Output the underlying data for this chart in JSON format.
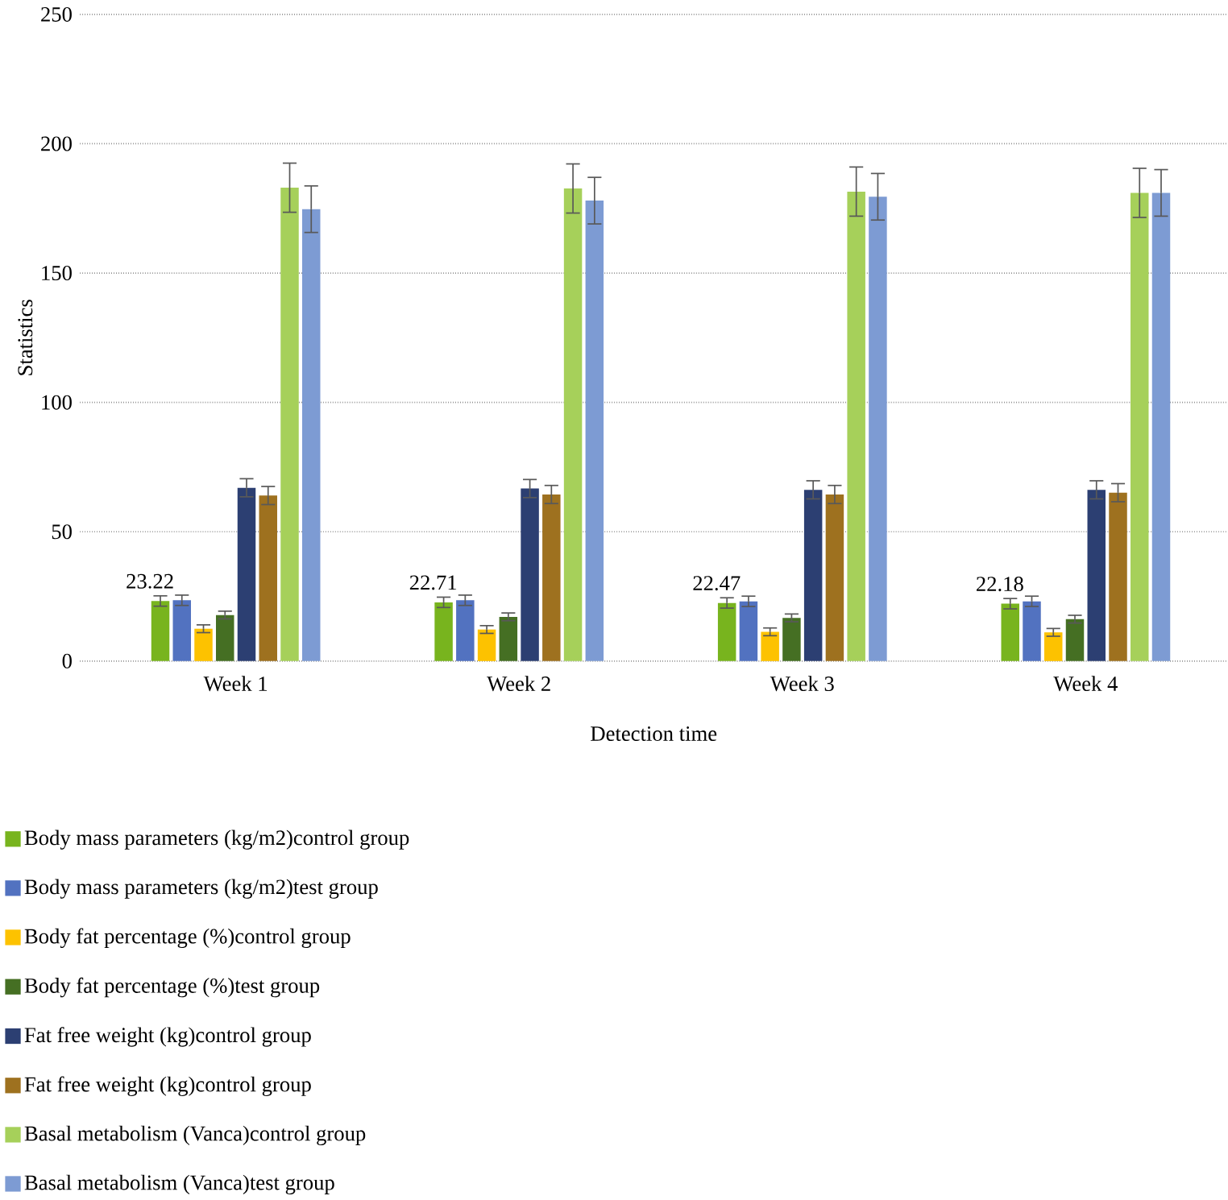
{
  "chart_data": {
    "type": "bar",
    "xlabel": "Detection time",
    "ylabel": "Statistics",
    "categories": [
      "Week 1",
      "Week 2",
      "Week 3",
      "Week 4"
    ],
    "ylim": [
      0,
      250
    ],
    "yticks": [
      0,
      50,
      100,
      150,
      200,
      250
    ],
    "grid": "y",
    "legend": "bottom",
    "series": [
      {
        "name": "Body mass parameters (kg/m2)control group",
        "color": "#78b41e",
        "values": [
          23.22,
          22.71,
          22.47,
          22.18
        ],
        "errors": [
          2,
          2,
          2,
          2
        ],
        "value_labels": [
          "23.22",
          "22.71",
          "22.47",
          "22.18"
        ]
      },
      {
        "name": "Body mass parameters (kg/m2)test group",
        "color": "#5272c0",
        "values": [
          23.5,
          23.5,
          23.1,
          23.1
        ],
        "errors": [
          2,
          2,
          2,
          2
        ]
      },
      {
        "name": "Body fat percentage (%)control group",
        "color": "#fdc200",
        "values": [
          12.5,
          12.2,
          11.3,
          11.1
        ],
        "errors": [
          1.5,
          1.5,
          1.5,
          1.5
        ]
      },
      {
        "name": "Body fat percentage (%)test group",
        "color": "#456f23",
        "values": [
          17.8,
          17.1,
          16.7,
          16.2
        ],
        "errors": [
          1.5,
          1.5,
          1.5,
          1.5
        ]
      },
      {
        "name": "Fat free weight (kg)control group",
        "color": "#2c3f72",
        "values": [
          67,
          66.7,
          66.2,
          66.2
        ],
        "errors": [
          3.5,
          3.5,
          3.5,
          3.5
        ]
      },
      {
        "name": "Fat free weight (kg)control group",
        "color": "#9e711f",
        "values": [
          64,
          64.4,
          64.4,
          65.1
        ],
        "errors": [
          3.5,
          3.5,
          3.5,
          3.5
        ]
      },
      {
        "name": "Basal metabolism (Vanca)control group",
        "color": "#a6d05a",
        "values": [
          183,
          182.7,
          181.5,
          181
        ],
        "errors": [
          9.5,
          9.5,
          9.5,
          9.5
        ]
      },
      {
        "name": "Basal metabolism (Vanca)test group",
        "color": "#7d9bd3",
        "values": [
          174.7,
          178,
          179.5,
          181
        ],
        "errors": [
          9,
          9,
          9,
          9
        ]
      }
    ]
  }
}
